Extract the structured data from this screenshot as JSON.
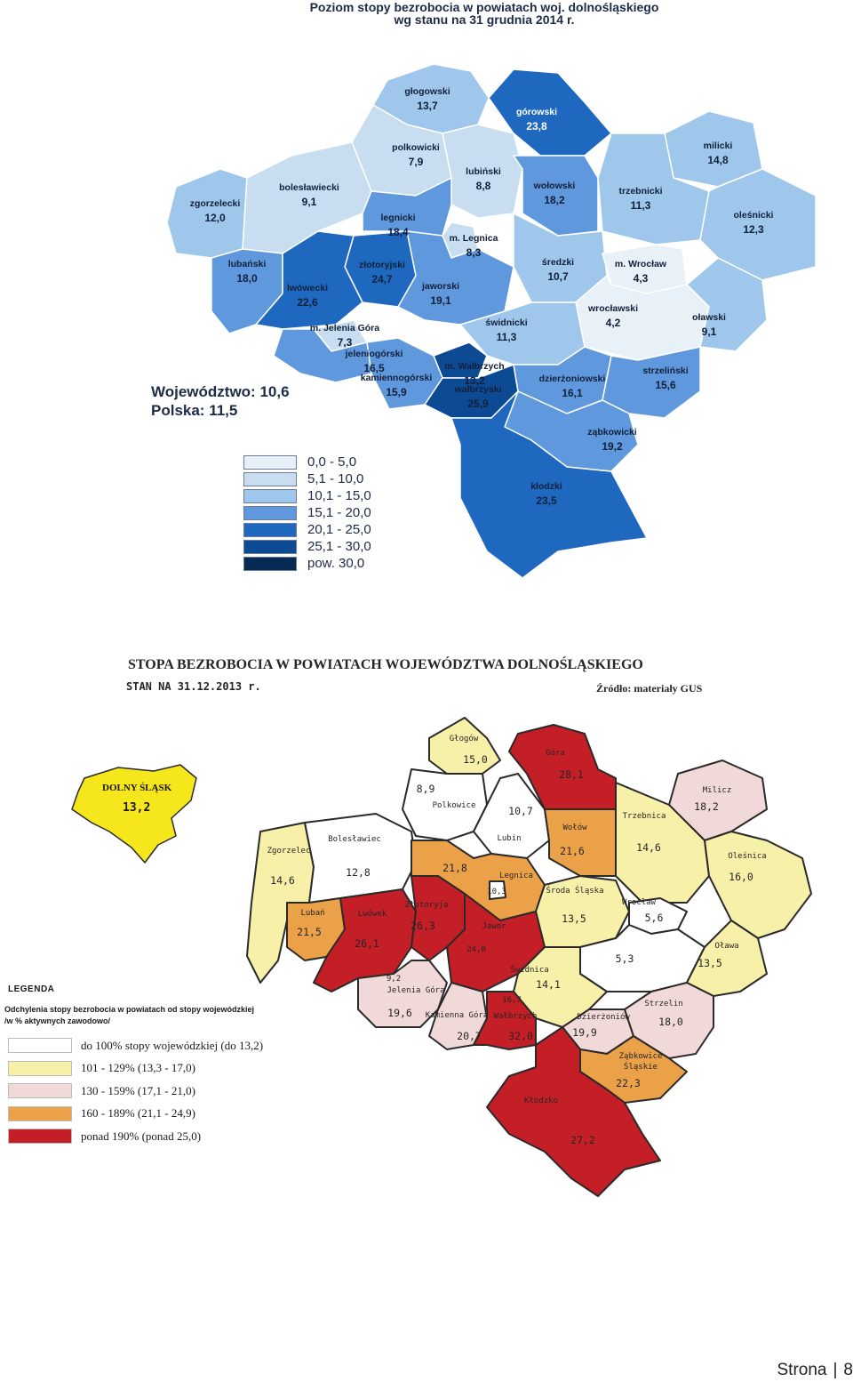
{
  "map1": {
    "title_line1": "Poziom stopy bezrobocia w powiatach woj. dolnośląskiego",
    "title_line2": "wg stanu na 31 grudnia 2014 r.",
    "totals": {
      "wojewodztwo": "Województwo: 10,6",
      "polska": "Polska: 11,5"
    },
    "legend": [
      {
        "label": "0,0  -  5,0",
        "color": "#e8f0f8"
      },
      {
        "label": "5,1 - 10,0",
        "color": "#c8def0"
      },
      {
        "label": "10,1 - 15,0",
        "color": "#9fc7ec"
      },
      {
        "label": "15,1 - 20,0",
        "color": "#5f98dc"
      },
      {
        "label": "20,1 - 25,0",
        "color": "#1e68c0"
      },
      {
        "label": "25,1 - 30,0",
        "color": "#0d4a94"
      },
      {
        "label": "pow.   30,0",
        "color": "#072a55"
      }
    ],
    "districts": [
      {
        "name": "głogowski",
        "value": "13,7"
      },
      {
        "name": "górowski",
        "value": "23,8"
      },
      {
        "name": "polkowicki",
        "value": "7,9"
      },
      {
        "name": "lubiński",
        "value": "8,8"
      },
      {
        "name": "milicki",
        "value": "14,8"
      },
      {
        "name": "zgorzelecki",
        "value": "12,0"
      },
      {
        "name": "bolesławiecki",
        "value": "9,1"
      },
      {
        "name": "wołowski",
        "value": "18,2"
      },
      {
        "name": "trzebnicki",
        "value": "11,3"
      },
      {
        "name": "oleśnicki",
        "value": "12,3"
      },
      {
        "name": "legnicki",
        "value": "18,4"
      },
      {
        "name": "m. Legnica",
        "value": "8,3"
      },
      {
        "name": "lubański",
        "value": "18,0"
      },
      {
        "name": "złotoryjski",
        "value": "24,7"
      },
      {
        "name": "średzki",
        "value": "10,7"
      },
      {
        "name": "m. Wrocław",
        "value": "4,3"
      },
      {
        "name": "lwówecki",
        "value": "22,6"
      },
      {
        "name": "jaworski",
        "value": "19,1"
      },
      {
        "name": "wrocławski",
        "value": "4,2"
      },
      {
        "name": "oławski",
        "value": "9,1"
      },
      {
        "name": "m. Jelenia Góra",
        "value": "7,3"
      },
      {
        "name": "świdnicki",
        "value": "11,3"
      },
      {
        "name": "jeleniogórski",
        "value": "16,5"
      },
      {
        "name": "m. Wałbrzych",
        "value": "13,2"
      },
      {
        "name": "kamiennogórski",
        "value": "15,9"
      },
      {
        "name": "wałbrzyski",
        "value": "25,9"
      },
      {
        "name": "dzierżoniowski",
        "value": "16,1"
      },
      {
        "name": "strzeliński",
        "value": "15,6"
      },
      {
        "name": "ząbkowicki",
        "value": "19,2"
      },
      {
        "name": "kłodzki",
        "value": "23,5"
      }
    ]
  },
  "map2": {
    "title": "STOPA BEZROBOCIA W POWIATACH WOJEWÓDZTWA DOLNOŚLĄSKIEGO",
    "date": "STAN NA 31.12.2013 r.",
    "source": "Źródło: materiały GUS",
    "region_name": "DOLNY ŚLĄSK",
    "region_value": "13,2",
    "legend_title": "LEGENDA",
    "legend_desc_line1": "Odchylenia stopy bezrobocia w powiatach od stopy wojewódzkiej",
    "legend_desc_line2": "/w % aktywnych zawodowo/",
    "legend": [
      {
        "label": "do 100% stopy wojewódzkiej (do 13,2)",
        "color": "#ffffff"
      },
      {
        "label": "101 - 129%   (13,3 - 17,0)",
        "color": "#f7f0a8"
      },
      {
        "label": "130 - 159%   (17,1 - 21,0)",
        "color": "#f2d9d9"
      },
      {
        "label": "160 - 189%   (21,1 - 24,9)",
        "color": "#eba148"
      },
      {
        "label": "ponad 190%  (ponad 25,0)",
        "color": "#c41e26"
      }
    ],
    "districts": [
      {
        "name": "Głogów",
        "value": "15,0"
      },
      {
        "name": "Góra",
        "value": "28,1"
      },
      {
        "name": "",
        "value": "8,9"
      },
      {
        "name": "Polkowice",
        "value": ""
      },
      {
        "name": "",
        "value": "10,7"
      },
      {
        "name": "Lubin",
        "value": ""
      },
      {
        "name": "Milicz",
        "value": "18,2"
      },
      {
        "name": "Wołów",
        "value": "21,6"
      },
      {
        "name": "Trzebnica",
        "value": "14,6"
      },
      {
        "name": "Oleśnica",
        "value": "16,0"
      },
      {
        "name": "Zgorzelec",
        "value": "14,6"
      },
      {
        "name": "Bolesławiec",
        "value": "12,8"
      },
      {
        "name": "",
        "value": "21,8"
      },
      {
        "name": "Legnica",
        "value": ""
      },
      {
        "name": "",
        "value": "10,3"
      },
      {
        "name": "Środa Śląska",
        "value": "13,5"
      },
      {
        "name": "Wrocław",
        "value": "5,6"
      },
      {
        "name": "Lubań",
        "value": "21,5"
      },
      {
        "name": "Lwówek",
        "value": "26,1"
      },
      {
        "name": "Złotoryja",
        "value": "26,3"
      },
      {
        "name": "Jawor",
        "value": "24,0"
      },
      {
        "name": "",
        "value": "5,3"
      },
      {
        "name": "Oława",
        "value": "13,5"
      },
      {
        "name": "",
        "value": "9,2"
      },
      {
        "name": "Jelenia Góra",
        "value": "19,6"
      },
      {
        "name": "Świdnica",
        "value": "14,1"
      },
      {
        "name": "Kamienna Góra",
        "value": "20,7"
      },
      {
        "name": "",
        "value": "16,7"
      },
      {
        "name": "Wałbrzych",
        "value": "32,0"
      },
      {
        "name": "Dzierżoniów",
        "value": "19,9"
      },
      {
        "name": "Strzelin",
        "value": "18,0"
      },
      {
        "name": "Ząbkowice Śląskie",
        "value": "22,3"
      },
      {
        "name": "Kłodzko",
        "value": "27,2"
      }
    ]
  },
  "footer": {
    "page_label": "Strona",
    "separator": "|",
    "page_number": "8"
  }
}
